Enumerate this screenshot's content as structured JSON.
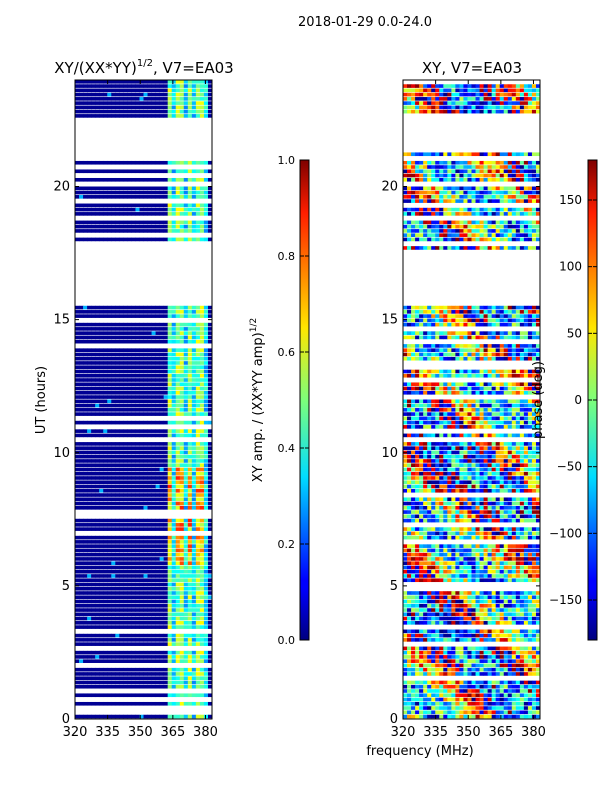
{
  "suptitle": "2018-01-29 0.0-24.0",
  "shared_xlabel": "frequency (MHz)",
  "chart_data": [
    {
      "type": "heatmap",
      "title_main": "XY/(XX*YY)",
      "title_sup": "1/2",
      "title_rest": ", V7=EA03",
      "xlabel": "",
      "ylabel": "UT (hours)",
      "xlim": [
        320,
        383
      ],
      "ylim": [
        0,
        24
      ],
      "xticks": [
        320,
        335,
        350,
        365,
        380
      ],
      "yticks": [
        0,
        5,
        10,
        15,
        20
      ],
      "colorbar": {
        "label_main": "XY amp. / (XX*YY amp)",
        "label_sup": "1/2",
        "range": [
          0.0,
          1.0
        ],
        "ticks": [
          "0.0",
          "0.2",
          "0.4",
          "0.6",
          "0.8",
          "1.0"
        ],
        "tick_values": [
          0.0,
          0.2,
          0.4,
          0.6,
          0.8,
          1.0
        ],
        "colormap": "jet"
      },
      "gaps_hours": [
        [
          17.6,
          15.5
        ],
        [
          22.5,
          21.3
        ]
      ]
    },
    {
      "type": "heatmap",
      "title_main": "XY, V7=EA03",
      "title_sup": "",
      "title_rest": "",
      "xlabel": "frequency (MHz)",
      "ylabel": "",
      "xlim": [
        320,
        383
      ],
      "ylim": [
        0,
        24
      ],
      "xticks": [
        320,
        335,
        350,
        365,
        380
      ],
      "yticks": [
        0,
        5,
        10,
        15,
        20
      ],
      "colorbar": {
        "label_main": "phase (deg)",
        "label_sup": "",
        "range": [
          -180,
          180
        ],
        "ticks": [
          "−150",
          "−100",
          "−50",
          "0",
          "50",
          "100",
          "150"
        ],
        "tick_values": [
          -150,
          -100,
          -50,
          0,
          50,
          100,
          150
        ],
        "colormap": "jet"
      },
      "gaps_hours": [
        [
          17.6,
          15.5
        ],
        [
          22.5,
          21.3
        ]
      ]
    }
  ]
}
